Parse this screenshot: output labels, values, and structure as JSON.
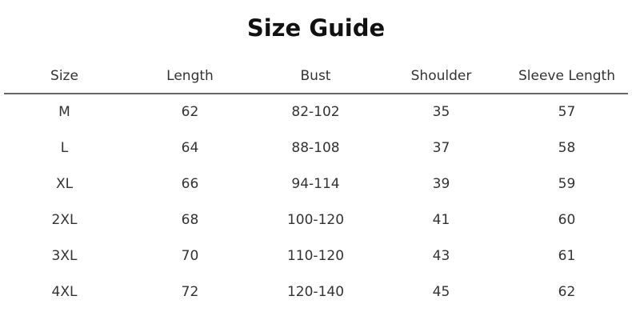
{
  "title": "Size Guide",
  "headers": [
    "Size",
    "Length",
    "Bust",
    "Shoulder",
    "Sleeve Length"
  ],
  "rows": [
    [
      "M",
      "62",
      "82-102",
      "35",
      "57"
    ],
    [
      "L",
      "64",
      "88-108",
      "37",
      "58"
    ],
    [
      "XL",
      "66",
      "94-114",
      "39",
      "59"
    ],
    [
      "2XL",
      "68",
      "100-120",
      "41",
      "60"
    ],
    [
      "3XL",
      "70",
      "110-120",
      "43",
      "61"
    ],
    [
      "4XL",
      "72",
      "120-140",
      "45",
      "62"
    ]
  ]
}
